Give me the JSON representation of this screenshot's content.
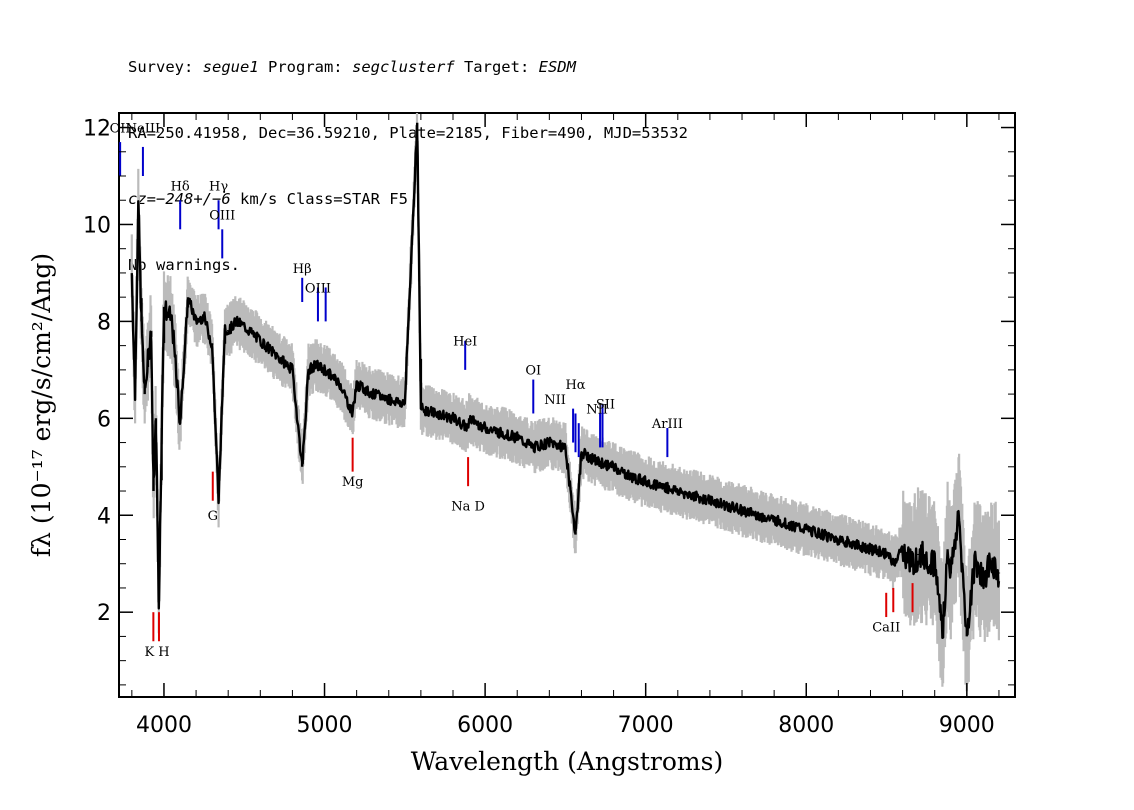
{
  "header": {
    "line1": {
      "survey_prefix": "Survey: ",
      "survey": "segue1",
      "program_prefix": " Program: ",
      "program": "segclusterf",
      "target_prefix": " Target: ",
      "target": "ESDM"
    },
    "line2": "RA=250.41958, Dec=36.59210, Plate=2185, Fiber=490, MJD=53532",
    "line3": {
      "cz": "cz=",
      "cz_value": "−248+/−6",
      "rest": " km/s Class=STAR F5"
    },
    "line4": "No warnings."
  },
  "chart_data": {
    "type": "line",
    "xlabel": "Wavelength (Angstroms)",
    "ylabel": "fλ (10⁻¹⁷ erg/s/cm²/Ang)",
    "xlim": [
      3720,
      9300
    ],
    "ylim": [
      0.25,
      12.3
    ],
    "x_ticks": [
      4000,
      5000,
      6000,
      7000,
      8000,
      9000
    ],
    "y_ticks": [
      2,
      4,
      6,
      8,
      10,
      12
    ],
    "series": [
      {
        "color": "#000000",
        "x": [
          3800,
          3820,
          3840,
          3860,
          3880,
          3900,
          3920,
          3935,
          3950,
          3968,
          3985,
          4000,
          4050,
          4101,
          4150,
          4200,
          4250,
          4300,
          4340,
          4380,
          4400,
          4450,
          4500,
          4600,
          4700,
          4800,
          4861,
          4900,
          4950,
          5000,
          5100,
          5173,
          5200,
          5300,
          5400,
          5500,
          5577,
          5600,
          5700,
          5800,
          5890,
          5900,
          6000,
          6100,
          6200,
          6300,
          6400,
          6500,
          6563,
          6600,
          6700,
          6800,
          6900,
          7000,
          7100,
          7200,
          7300,
          7400,
          7500,
          7600,
          7700,
          7800,
          7900,
          8000,
          8100,
          8200,
          8300,
          8400,
          8500,
          8542,
          8600,
          8662,
          8700,
          8750,
          8800,
          8850,
          8880,
          8900,
          8950,
          9000,
          9050,
          9100,
          9150,
          9200
        ],
        "y": [
          9.0,
          6.5,
          10.4,
          8.0,
          6.5,
          7.2,
          7.8,
          4.5,
          6.0,
          2.2,
          5.5,
          8.3,
          8.0,
          5.9,
          8.5,
          8.0,
          8.1,
          7.5,
          4.3,
          7.9,
          7.8,
          8.0,
          7.9,
          7.6,
          7.3,
          7.0,
          5.0,
          7.0,
          7.1,
          7.0,
          6.7,
          6.1,
          6.7,
          6.5,
          6.4,
          6.3,
          12.1,
          6.2,
          6.1,
          6.0,
          5.8,
          6.0,
          5.8,
          5.7,
          5.6,
          5.4,
          5.5,
          5.4,
          3.6,
          5.3,
          5.1,
          5.0,
          4.8,
          4.7,
          4.6,
          4.5,
          4.4,
          4.3,
          4.2,
          4.1,
          4.0,
          3.9,
          3.8,
          3.7,
          3.6,
          3.5,
          3.4,
          3.3,
          3.2,
          3.0,
          3.3,
          3.0,
          3.2,
          3.1,
          3.0,
          1.6,
          3.3,
          2.8,
          4.0,
          1.5,
          3.1,
          2.7,
          3.0,
          2.8
        ]
      }
    ],
    "lines_blue": [
      {
        "label": "OII",
        "x": 3727
      },
      {
        "label": "NeIII",
        "x": 3869
      },
      {
        "label": "Hδ",
        "x": 4101
      },
      {
        "label": "Hγ",
        "x": 4340
      },
      {
        "label": "OIII",
        "x": 4363
      },
      {
        "label": "Hβ",
        "x": 4861
      },
      {
        "label": "OIII",
        "x": 4959
      },
      {
        "label": "",
        "x": 5007
      },
      {
        "label": "HeI",
        "x": 5876
      },
      {
        "label": "OI",
        "x": 6300
      },
      {
        "label": "NII",
        "x": 6548
      },
      {
        "label": "Hα",
        "x": 6563
      },
      {
        "label": "",
        "x": 6583
      },
      {
        "label": "NII",
        "x": 6716
      },
      {
        "label": "SII",
        "x": 6731
      },
      {
        "label": "ArIII",
        "x": 7135
      }
    ],
    "lines_red": [
      {
        "label": "K",
        "x": 3934
      },
      {
        "label": "H",
        "x": 3969
      },
      {
        "label": "G",
        "x": 4304
      },
      {
        "label": "Mg",
        "x": 5175
      },
      {
        "label": "Na D",
        "x": 5894
      },
      {
        "label": "CaII",
        "x": 8498
      },
      {
        "label": "",
        "x": 8542
      },
      {
        "label": "",
        "x": 8662
      }
    ],
    "colors": {
      "flux": "#000000",
      "noise": "#bbbbbb",
      "emission": "#0000cc",
      "absorption": "#dd0000"
    }
  }
}
